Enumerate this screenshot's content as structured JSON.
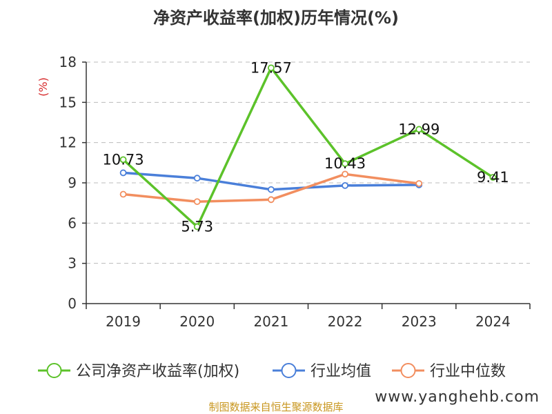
{
  "chart_data": {
    "type": "line",
    "title": "净资产收益率(加权)历年情况(%)",
    "ylabel": "(%)",
    "xlabel": "",
    "categories": [
      "2019",
      "2020",
      "2021",
      "2022",
      "2023",
      "2024"
    ],
    "ylim": [
      0,
      18
    ],
    "yticks": [
      0,
      3,
      6,
      9,
      12,
      15,
      18
    ],
    "grid": true,
    "legend_position": "bottom",
    "series": [
      {
        "name": "公司净资产收益率(加权)",
        "color": "#5cc22a",
        "values": [
          10.73,
          5.73,
          17.57,
          10.43,
          12.99,
          9.41
        ],
        "labels": [
          "10.73",
          "5.73",
          "17.57",
          "10.43",
          "12.99",
          "9.41"
        ]
      },
      {
        "name": "行业均值",
        "color": "#4a7fd9",
        "values": [
          9.75,
          9.35,
          8.5,
          8.8,
          8.85,
          null
        ]
      },
      {
        "name": "行业中位数",
        "color": "#f28e5f",
        "values": [
          8.15,
          7.6,
          7.75,
          9.65,
          8.95,
          null
        ]
      }
    ]
  },
  "footer": {
    "source": "制图数据来自恒生聚源数据库",
    "watermark": "www.yanghehb.com"
  }
}
